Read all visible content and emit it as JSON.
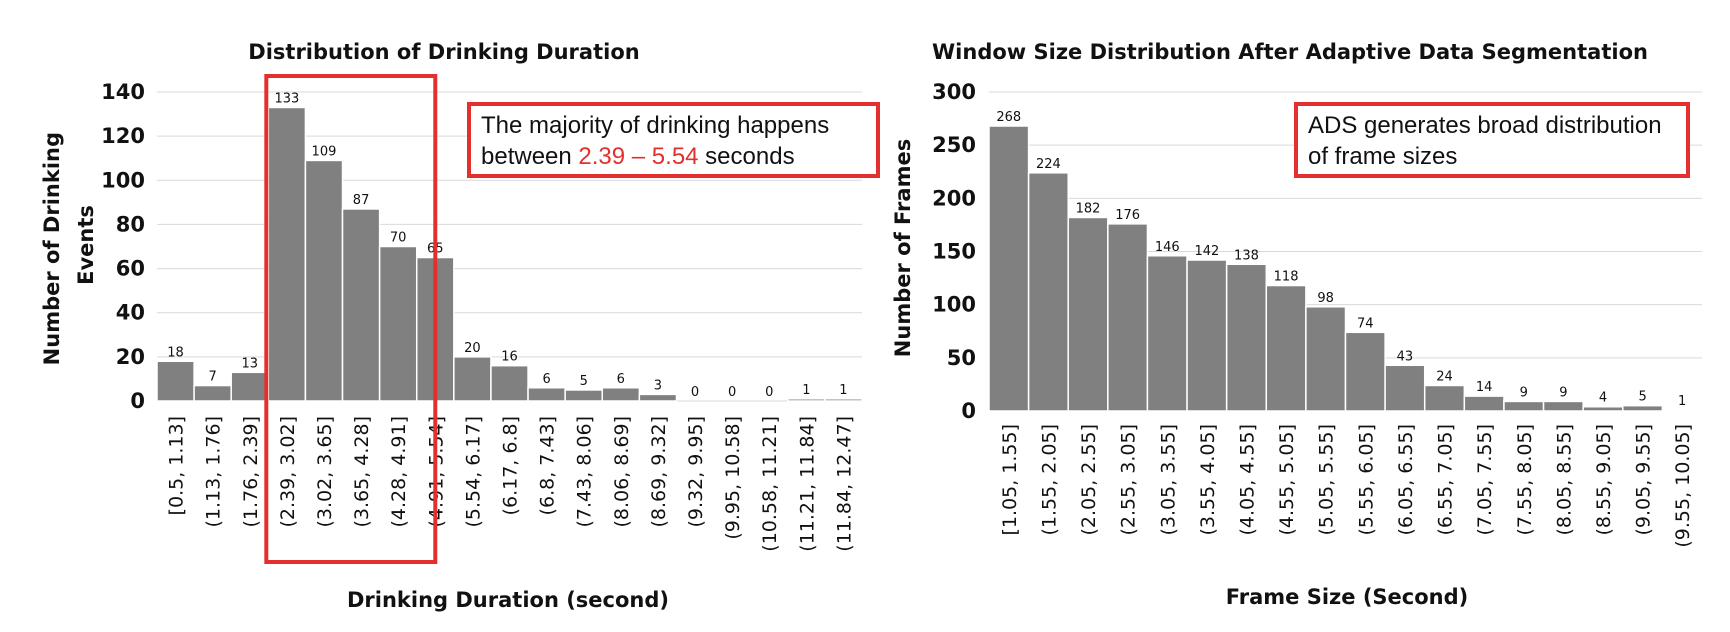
{
  "chart_data": [
    {
      "type": "bar",
      "title": "Distribution of Drinking Duration",
      "xlabel": "Drinking Duration (second)",
      "ylabel": "Number of Drinking Events",
      "ylim": [
        0,
        140
      ],
      "yticks": [
        0,
        20,
        40,
        60,
        80,
        100,
        120,
        140
      ],
      "grid": true,
      "categories": [
        "[0.5, 1.13]",
        "(1.13, 1.76]",
        "(1.76, 2.39]",
        "(2.39, 3.02]",
        "(3.02, 3.65]",
        "(3.65, 4.28]",
        "(4.28, 4.91]",
        "(4.91, 5.54]",
        "(5.54, 6.17]",
        "(6.17, 6.8]",
        "(6.8, 7.43]",
        "(7.43, 8.06]",
        "(8.06, 8.69]",
        "(8.69, 9.32]",
        "(9.32, 9.95]",
        "(9.95, 10.58]",
        "(10.58, 11.21]",
        "(11.21, 11.84]",
        "(11.84, 12.47]"
      ],
      "values": [
        18,
        7,
        13,
        133,
        109,
        87,
        70,
        65,
        20,
        16,
        6,
        5,
        6,
        3,
        0,
        0,
        0,
        1,
        1
      ],
      "annotation": {
        "text_before": "The majority of drinking happens between ",
        "highlight": "2.39 – 5.54",
        "text_after": " seconds",
        "highlight_range": [
          "(2.39, 3.02]",
          "(4.91, 5.54]"
        ],
        "highlight_color": "#e3302f"
      }
    },
    {
      "type": "bar",
      "title": "Window Size Distribution After Adaptive Data Segmentation",
      "xlabel": "Frame Size (Second)",
      "ylabel": "Number of Frames",
      "ylim": [
        0,
        300
      ],
      "yticks": [
        0,
        50,
        100,
        150,
        200,
        250,
        300
      ],
      "grid": true,
      "categories": [
        "[1.05, 1.55]",
        "(1.55, 2.05]",
        "(2.05, 2.55]",
        "(2.55, 3.05]",
        "(3.05, 3.55]",
        "(3.55, 4.05]",
        "(4.05, 4.55]",
        "(4.55, 5.05]",
        "(5.05, 5.55]",
        "(5.55, 6.05]",
        "(6.05, 6.55]",
        "(6.55, 7.05]",
        "(7.05, 7.55]",
        "(7.55, 8.05]",
        "(8.05, 8.55]",
        "(8.55, 9.05]",
        "(9.05, 9.55]",
        "(9.55, 10.05]"
      ],
      "values": [
        268,
        224,
        182,
        176,
        146,
        142,
        138,
        118,
        98,
        74,
        43,
        24,
        14,
        9,
        9,
        4,
        5,
        1
      ],
      "annotation": {
        "text": "ADS generates broad distribution of frame sizes"
      }
    }
  ],
  "colors": {
    "bar": "#808080",
    "highlight": "#e3302f",
    "grid": "#d9d9d9"
  }
}
